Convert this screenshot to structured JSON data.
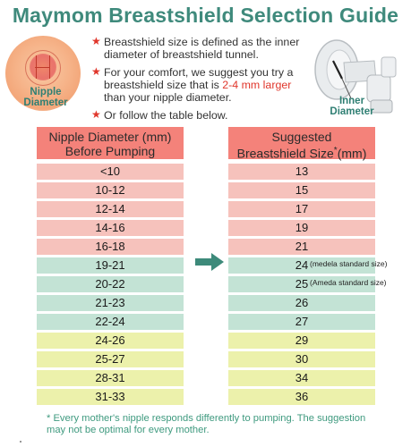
{
  "title": "Maymom Breastshield Selection Guide",
  "nipple_label_line1": "Nipple",
  "nipple_label_line2": "Diameter",
  "inner_label_line1": "Inner",
  "inner_label_line2": "Diameter",
  "bullets": {
    "b1": "Breastshield size is defined as the inner diameter of breastshield tunnel.",
    "b2_pre": "For your comfort, we suggest you try a breastshield size that is ",
    "b2_highlight": "2-4 mm larger",
    "b2_post": " than your nipple diameter.",
    "b3": "Or follow the table below."
  },
  "table": {
    "left_header_line1": "Nipple Diameter (mm)",
    "left_header_line2": "Before Pumping",
    "right_header_line1": "Suggested",
    "right_header_line2": "Breastshield Size",
    "right_header_star": "*",
    "right_header_unit": "(mm)",
    "rows": [
      {
        "nipple": "<10",
        "size": "13",
        "note": ""
      },
      {
        "nipple": "10-12",
        "size": "15",
        "note": ""
      },
      {
        "nipple": "12-14",
        "size": "17",
        "note": ""
      },
      {
        "nipple": "14-16",
        "size": "19",
        "note": ""
      },
      {
        "nipple": "16-18",
        "size": "21",
        "note": ""
      },
      {
        "nipple": "19-21",
        "size": "24",
        "note": "(medela standard size)"
      },
      {
        "nipple": "20-22",
        "size": "25",
        "note": "(Ameda standard size)"
      },
      {
        "nipple": "21-23",
        "size": "26",
        "note": ""
      },
      {
        "nipple": "22-24",
        "size": "27",
        "note": ""
      },
      {
        "nipple": "24-26",
        "size": "29",
        "note": ""
      },
      {
        "nipple": "25-27",
        "size": "30",
        "note": ""
      },
      {
        "nipple": "28-31",
        "size": "34",
        "note": ""
      },
      {
        "nipple": "31-33",
        "size": "36",
        "note": ""
      }
    ]
  },
  "footnote": "* Every mother's nipple responds differently to pumping. The suggestion may not be optimal for every mother.",
  "colors": {
    "title": "#3f8a7c",
    "header": "#f4827a",
    "pink_row": "#f6c2bc",
    "mint_row": "#c3e3d5",
    "yellow_row": "#ecf1ab",
    "accent_red": "#e0362b",
    "arrow": "#3d8a7a"
  }
}
